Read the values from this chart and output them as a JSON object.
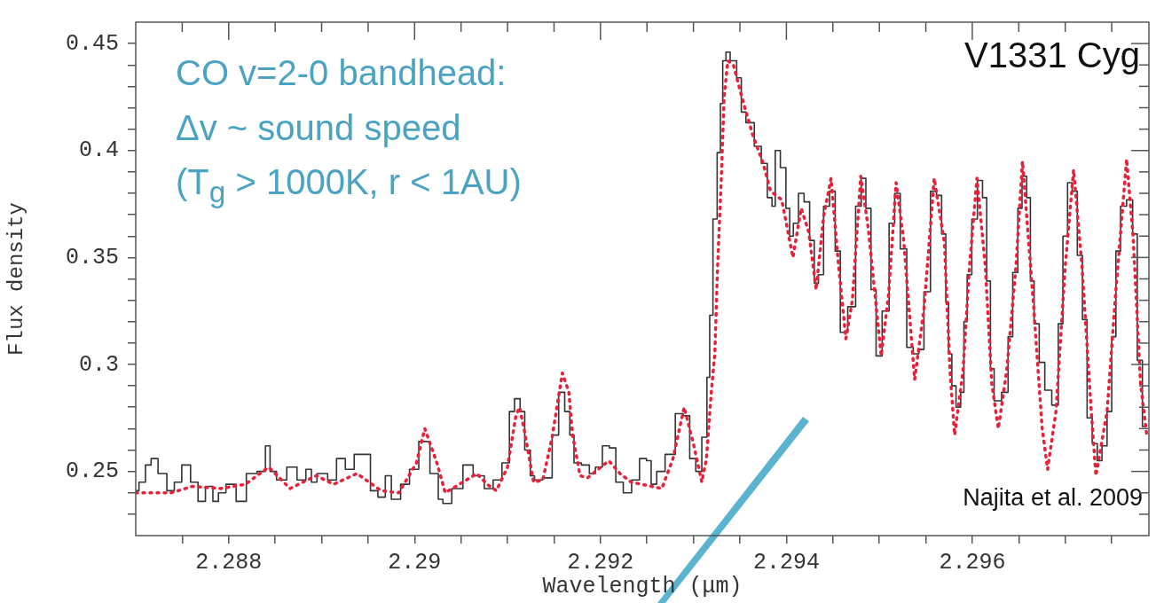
{
  "chart_data": {
    "type": "line",
    "xlabel": "Wavelength (μm)",
    "ylabel": "Flux density",
    "xlim": [
      2.287,
      2.2979
    ],
    "ylim": [
      0.22,
      0.46
    ],
    "xticks": [
      {
        "value": 2.2875,
        "label": null
      },
      2.288,
      {
        "value": 2.2885,
        "label": null
      },
      {
        "value": 2.289,
        "label": null
      },
      {
        "value": 2.2895,
        "label": null
      },
      2.29,
      {
        "value": 2.2905,
        "label": null
      },
      {
        "value": 2.291,
        "label": null
      },
      {
        "value": 2.2915,
        "label": null
      },
      2.292,
      {
        "value": 2.2925,
        "label": null
      },
      {
        "value": 2.293,
        "label": null
      },
      {
        "value": 2.2935,
        "label": null
      },
      2.294,
      {
        "value": 2.2945,
        "label": null
      },
      {
        "value": 2.295,
        "label": null
      },
      {
        "value": 2.2955,
        "label": null
      },
      2.296,
      {
        "value": 2.2965,
        "label": null
      },
      {
        "value": 2.297,
        "label": null
      },
      {
        "value": 2.2975,
        "label": null
      }
    ],
    "yticks": [
      {
        "value": 0.23,
        "label": null
      },
      {
        "value": 0.24,
        "label": null
      },
      0.25,
      {
        "value": 0.26,
        "label": null
      },
      {
        "value": 0.27,
        "label": null
      },
      {
        "value": 0.28,
        "label": null
      },
      {
        "value": 0.29,
        "label": null
      },
      0.3,
      {
        "value": 0.31,
        "label": null
      },
      {
        "value": 0.32,
        "label": null
      },
      {
        "value": 0.33,
        "label": null
      },
      {
        "value": 0.34,
        "label": null
      },
      0.35,
      {
        "value": 0.36,
        "label": null
      },
      {
        "value": 0.37,
        "label": null
      },
      {
        "value": 0.38,
        "label": null
      },
      {
        "value": 0.39,
        "label": null
      },
      0.4,
      {
        "value": 0.41,
        "label": null
      },
      {
        "value": 0.42,
        "label": null
      },
      {
        "value": 0.43,
        "label": null
      },
      {
        "value": 0.44,
        "label": null
      },
      0.45
    ],
    "marker": "none",
    "annotations": [
      "CO v=2-0 bandhead:",
      "Δv ~ sound speed",
      "(T$_{g}$ > 1000K, r < 1AU)",
      "V1331 Cyg",
      "Najita et al. 2009"
    ],
    "series": [
      {
        "type": "step",
        "color": "#333333",
        "line_style": "solid",
        "x": [
          2.287,
          2.28707,
          2.28714,
          2.28719,
          2.28729,
          2.28738,
          2.28745,
          2.28754,
          2.28764,
          2.2877,
          2.2878,
          2.28786,
          2.28792,
          2.28802,
          2.28814,
          2.28824,
          2.28837,
          2.28842,
          2.28847,
          2.28856,
          2.28869,
          2.28878,
          2.28888,
          2.2889,
          2.289,
          2.28913,
          2.28919,
          2.28932,
          2.28938,
          2.28951,
          2.28954,
          2.28967,
          2.2897,
          2.2898,
          2.2899,
          2.28999,
          2.2901,
          2.29023,
          2.29028,
          2.29033,
          2.29047,
          2.29057,
          2.29069,
          2.29081,
          2.29088,
          2.291,
          2.29104,
          2.29111,
          2.29116,
          2.29121,
          2.29128,
          2.2913,
          2.29145,
          2.29151,
          2.29159,
          2.29164,
          2.2917,
          2.29173,
          2.29186,
          2.2919,
          2.29199,
          2.29205,
          2.29214,
          2.29219,
          2.2923,
          2.29237,
          2.29247,
          2.29252,
          2.29257,
          2.29264,
          2.29275,
          2.29286,
          2.29292,
          2.293,
          2.29305,
          2.29313,
          2.29316,
          2.29319,
          2.29323,
          2.29328,
          2.2933,
          2.29333,
          2.29337,
          2.29342,
          2.29351,
          2.29352,
          2.29361,
          2.2937,
          2.29376,
          2.29383,
          2.29386,
          2.2939,
          2.29397,
          2.29402,
          2.29405,
          2.2941,
          2.29416,
          2.29422,
          2.29428,
          2.29432,
          2.29437,
          2.29443,
          2.2945,
          2.29455,
          2.29461,
          2.29471,
          2.29478,
          2.29483,
          2.29488,
          2.29494,
          2.29499,
          2.29507,
          2.29514,
          2.29519,
          2.29526,
          2.29533,
          2.2954,
          2.29545,
          2.29551,
          2.29559,
          2.29564,
          2.2957,
          2.29573,
          2.29576,
          2.2958,
          2.29585,
          2.2959,
          2.29592,
          2.29597,
          2.29602,
          2.29609,
          2.29613,
          2.29618,
          2.29621,
          2.29626,
          2.29637,
          2.2964,
          2.29647,
          2.29651,
          2.29656,
          2.29661,
          2.29664,
          2.29669,
          2.29675,
          2.29681,
          2.2969,
          2.29695,
          2.297,
          2.29705,
          2.2971,
          2.29716,
          2.29721,
          2.29726,
          2.29732,
          2.29737,
          2.29742,
          2.29748,
          2.29752,
          2.29757,
          2.29762,
          2.2977,
          2.29775,
          2.2978,
          2.29786
        ],
        "values": [
          0.241,
          0.245,
          0.253,
          0.256,
          0.249,
          0.241,
          0.245,
          0.253,
          0.245,
          0.236,
          0.243,
          0.236,
          0.24,
          0.244,
          0.236,
          0.249,
          0.25,
          0.262,
          0.25,
          0.246,
          0.252,
          0.246,
          0.251,
          0.245,
          0.249,
          0.246,
          0.256,
          0.251,
          0.258,
          0.258,
          0.241,
          0.238,
          0.248,
          0.237,
          0.244,
          0.251,
          0.264,
          0.249,
          0.237,
          0.235,
          0.242,
          0.253,
          0.248,
          0.242,
          0.246,
          0.254,
          0.278,
          0.284,
          0.278,
          0.26,
          0.248,
          0.246,
          0.247,
          0.267,
          0.287,
          0.278,
          0.267,
          0.254,
          0.253,
          0.249,
          0.252,
          0.262,
          0.261,
          0.245,
          0.24,
          0.246,
          0.256,
          0.255,
          0.244,
          0.25,
          0.258,
          0.277,
          0.276,
          0.256,
          0.25,
          0.266,
          0.294,
          0.323,
          0.368,
          0.399,
          0.422,
          0.442,
          0.446,
          0.442,
          0.434,
          0.418,
          0.413,
          0.402,
          0.394,
          0.378,
          0.374,
          0.4,
          0.392,
          0.373,
          0.36,
          0.366,
          0.38,
          0.376,
          0.358,
          0.338,
          0.342,
          0.374,
          0.381,
          0.353,
          0.315,
          0.327,
          0.374,
          0.387,
          0.373,
          0.335,
          0.304,
          0.325,
          0.366,
          0.38,
          0.354,
          0.308,
          0.305,
          0.307,
          0.334,
          0.381,
          0.379,
          0.361,
          0.329,
          0.305,
          0.29,
          0.28,
          0.287,
          0.32,
          0.342,
          0.368,
          0.386,
          0.378,
          0.339,
          0.298,
          0.283,
          0.287,
          0.313,
          0.343,
          0.373,
          0.388,
          0.378,
          0.339,
          0.319,
          0.301,
          0.288,
          0.281,
          0.319,
          0.36,
          0.385,
          0.381,
          0.351,
          0.321,
          0.275,
          0.263,
          0.255,
          0.262,
          0.278,
          0.313,
          0.353,
          0.374,
          0.377,
          0.361,
          0.302,
          0.271
        ]
      },
      {
        "type": "line",
        "color": "#e8203a",
        "line_style": "dotted",
        "x": [
          2.287,
          2.28738,
          2.28761,
          2.28792,
          2.28818,
          2.28843,
          2.28866,
          2.28894,
          2.28913,
          2.28938,
          2.28964,
          2.28983,
          2.29002,
          2.29011,
          2.29024,
          2.29033,
          2.29052,
          2.29067,
          2.29078,
          2.29088,
          2.291,
          2.29109,
          2.29113,
          2.29119,
          2.29128,
          2.29138,
          2.29148,
          2.29159,
          2.29166,
          2.2917,
          2.29178,
          2.29186,
          2.29209,
          2.29221,
          2.29233,
          2.29266,
          2.29278,
          2.2929,
          2.293,
          2.29309,
          2.29314,
          2.29319,
          2.29323,
          2.29326,
          2.2933,
          2.29333,
          2.29337,
          2.29343,
          2.29352,
          2.29364,
          2.29375,
          2.29383,
          2.29395,
          2.29407,
          2.29416,
          2.29424,
          2.29432,
          2.2944,
          2.29448,
          2.29456,
          2.29464,
          2.29471,
          2.2948,
          2.29488,
          2.29502,
          2.2951,
          2.29518,
          2.29526,
          2.29538,
          2.29548,
          2.29559,
          2.2957,
          2.29576,
          2.29581,
          2.2959,
          2.29597,
          2.29605,
          2.29614,
          2.29621,
          2.29628,
          2.29637,
          2.29647,
          2.29654,
          2.29666,
          2.29675,
          2.29681,
          2.2969,
          2.297,
          2.29709,
          2.29718,
          2.29728,
          2.29733,
          2.29745,
          2.29754,
          2.29766,
          2.29773,
          2.29781,
          2.29788
        ],
        "values": [
          0.24,
          0.24,
          0.243,
          0.242,
          0.244,
          0.252,
          0.242,
          0.248,
          0.244,
          0.249,
          0.241,
          0.24,
          0.254,
          0.27,
          0.254,
          0.24,
          0.245,
          0.249,
          0.244,
          0.241,
          0.252,
          0.276,
          0.28,
          0.267,
          0.245,
          0.246,
          0.266,
          0.296,
          0.287,
          0.267,
          0.248,
          0.247,
          0.255,
          0.249,
          0.245,
          0.242,
          0.256,
          0.28,
          0.263,
          0.245,
          0.256,
          0.286,
          0.305,
          0.346,
          0.387,
          0.425,
          0.442,
          0.44,
          0.425,
          0.407,
          0.394,
          0.381,
          0.377,
          0.35,
          0.373,
          0.362,
          0.335,
          0.369,
          0.387,
          0.347,
          0.312,
          0.33,
          0.388,
          0.364,
          0.304,
          0.333,
          0.385,
          0.359,
          0.293,
          0.326,
          0.387,
          0.357,
          0.297,
          0.267,
          0.297,
          0.346,
          0.387,
          0.346,
          0.291,
          0.27,
          0.297,
          0.346,
          0.395,
          0.327,
          0.271,
          0.251,
          0.278,
          0.346,
          0.391,
          0.346,
          0.278,
          0.248,
          0.278,
          0.332,
          0.396,
          0.36,
          0.291,
          0.266
        ]
      }
    ]
  }
}
